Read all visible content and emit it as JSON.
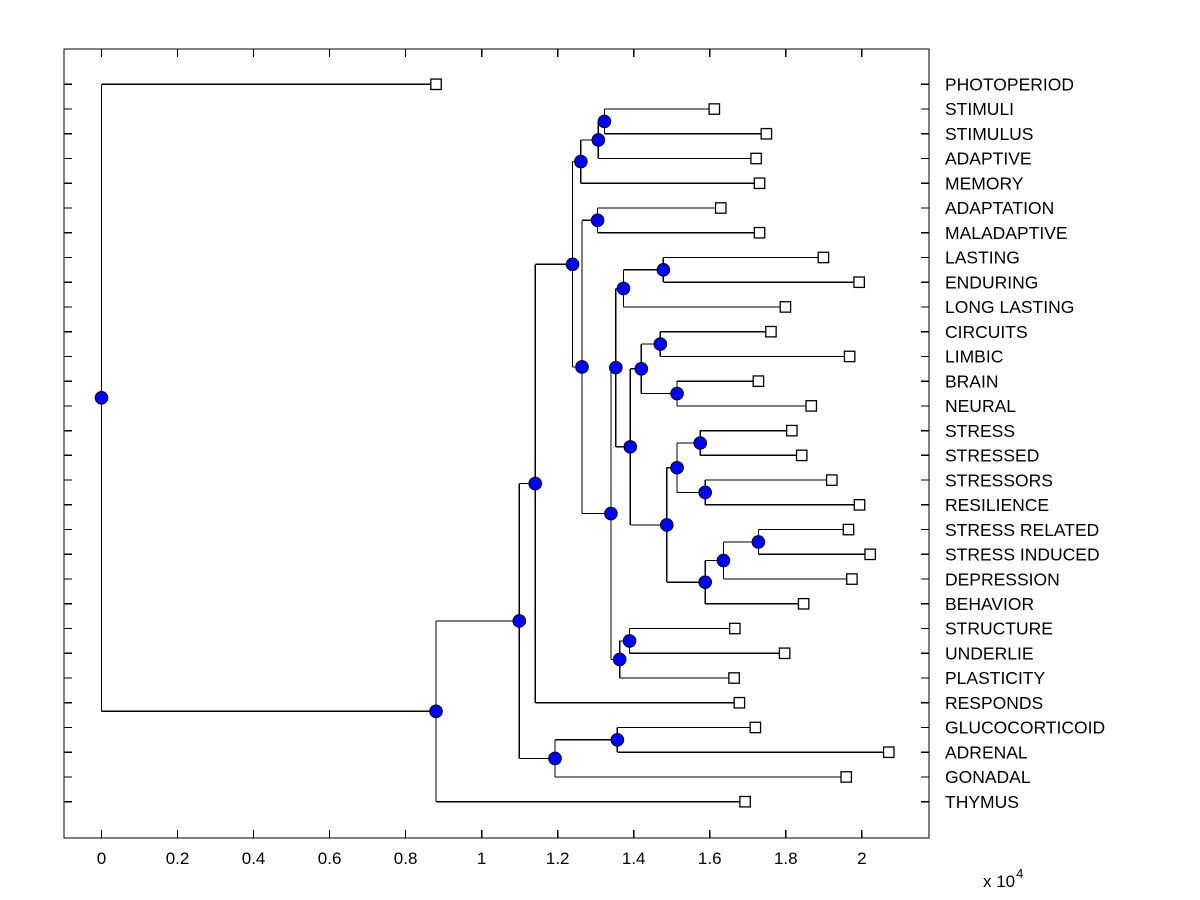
{
  "figure": {
    "background": "#ffffff",
    "description": "Hierarchical clustering dendrogram (phylogenetic-style tree) of stress-related terms"
  },
  "chart_data": {
    "type": "dendrogram",
    "orientation": "horizontal-right-labels",
    "title": "",
    "xlabel": "",
    "ylabel": "",
    "x_unit_multiplier": "1e4",
    "x_axis": {
      "tick_values": [
        0,
        0.2,
        0.4,
        0.6,
        0.8,
        1,
        1.2,
        1.4,
        1.6,
        1.8,
        2
      ],
      "tick_labels": [
        "0",
        "0.2",
        "0.4",
        "0.6",
        "0.8",
        "1",
        "1.2",
        "1.4",
        "1.6",
        "1.8",
        "2"
      ],
      "multiplier_base": "x 10",
      "multiplier_exponent": "4",
      "xlim": [
        -0.1,
        2.18
      ],
      "grid": false
    },
    "style": {
      "line_color": "#000000",
      "internal_node_fill": "#0000ff",
      "internal_node_edge": "#000000",
      "leaf_marker_fill": "#ffffff",
      "leaf_marker_edge": "#000000",
      "box": true
    },
    "leaves": [
      {
        "label": "PHOTOPERIOD",
        "x": 0.88
      },
      {
        "label": "STIMULI",
        "x": 1.612
      },
      {
        "label": "STIMULUS",
        "x": 1.749
      },
      {
        "label": "ADAPTIVE",
        "x": 1.722
      },
      {
        "label": "MEMORY",
        "x": 1.731
      },
      {
        "label": "ADAPTATION",
        "x": 1.629
      },
      {
        "label": "MALADAPTIVE",
        "x": 1.731
      },
      {
        "label": "LASTING",
        "x": 1.899
      },
      {
        "label": "ENDURING",
        "x": 1.993
      },
      {
        "label": "LONG LASTING",
        "x": 1.799
      },
      {
        "label": "CIRCUITS",
        "x": 1.761
      },
      {
        "label": "LIMBIC",
        "x": 1.968
      },
      {
        "label": "BRAIN",
        "x": 1.728
      },
      {
        "label": "NEURAL",
        "x": 1.867
      },
      {
        "label": "STRESS",
        "x": 1.816
      },
      {
        "label": "STRESSED",
        "x": 1.842
      },
      {
        "label": "STRESSORS",
        "x": 1.921
      },
      {
        "label": "RESILIENCE",
        "x": 1.994
      },
      {
        "label": "STRESS RELATED",
        "x": 1.965
      },
      {
        "label": "STRESS INDUCED",
        "x": 2.022
      },
      {
        "label": "DEPRESSION",
        "x": 1.974
      },
      {
        "label": "BEHAVIOR",
        "x": 1.847
      },
      {
        "label": "STRUCTURE",
        "x": 1.666
      },
      {
        "label": "UNDERLIE",
        "x": 1.797
      },
      {
        "label": "PLASTICITY",
        "x": 1.664
      },
      {
        "label": "RESPONDS",
        "x": 1.678
      },
      {
        "label": "GLUCOCORTICOID",
        "x": 1.72
      },
      {
        "label": "ADRENAL",
        "x": 2.071
      },
      {
        "label": "GONADAL",
        "x": 1.959
      },
      {
        "label": "THYMUS",
        "x": 1.693
      }
    ],
    "tree": {
      "x": 0.0,
      "children": [
        {
          "leaf": 0
        },
        {
          "x": 0.88,
          "children": [
            {
              "x": 1.099,
              "children": [
                {
                  "x": 1.141,
                  "children": [
                    {
                      "x": 1.239,
                      "children": [
                        {
                          "x": 1.261,
                          "children": [
                            {
                              "x": 1.307,
                              "children": [
                                {
                                  "x": 1.323,
                                  "children": [
                                    {
                                      "leaf": 1
                                    },
                                    {
                                      "leaf": 2
                                    }
                                  ]
                                },
                                {
                                  "leaf": 3
                                }
                              ]
                            },
                            {
                              "leaf": 4
                            }
                          ]
                        },
                        {
                          "x": 1.264,
                          "children": [
                            {
                              "x": 1.305,
                              "children": [
                                {
                                  "leaf": 5
                                },
                                {
                                  "leaf": 6
                                }
                              ]
                            },
                            {
                              "x": 1.34,
                              "children": [
                                {
                                  "x": 1.353,
                                  "children": [
                                    {
                                      "x": 1.373,
                                      "children": [
                                        {
                                          "x": 1.478,
                                          "children": [
                                            {
                                              "leaf": 7
                                            },
                                            {
                                              "leaf": 8
                                            }
                                          ]
                                        },
                                        {
                                          "leaf": 9
                                        }
                                      ]
                                    },
                                    {
                                      "x": 1.391,
                                      "children": [
                                        {
                                          "x": 1.42,
                                          "children": [
                                            {
                                              "x": 1.47,
                                              "children": [
                                                {
                                                  "leaf": 10
                                                },
                                                {
                                                  "leaf": 11
                                                }
                                              ]
                                            },
                                            {
                                              "x": 1.514,
                                              "children": [
                                                {
                                                  "leaf": 12
                                                },
                                                {
                                                  "leaf": 13
                                                }
                                              ]
                                            }
                                          ]
                                        },
                                        {
                                          "x": 1.487,
                                          "children": [
                                            {
                                              "x": 1.514,
                                              "children": [
                                                {
                                                  "x": 1.575,
                                                  "children": [
                                                    {
                                                      "leaf": 14
                                                    },
                                                    {
                                                      "leaf": 15
                                                    }
                                                  ]
                                                },
                                                {
                                                  "x": 1.588,
                                                  "children": [
                                                    {
                                                      "leaf": 16
                                                    },
                                                    {
                                                      "leaf": 17
                                                    }
                                                  ]
                                                }
                                              ]
                                            },
                                            {
                                              "x": 1.588,
                                              "children": [
                                                {
                                                  "x": 1.636,
                                                  "children": [
                                                    {
                                                      "x": 1.728,
                                                      "children": [
                                                        {
                                                          "leaf": 18
                                                        },
                                                        {
                                                          "leaf": 19
                                                        }
                                                      ]
                                                    },
                                                    {
                                                      "leaf": 20
                                                    }
                                                  ]
                                                },
                                                {
                                                  "leaf": 21
                                                }
                                              ]
                                            }
                                          ]
                                        }
                                      ]
                                    }
                                  ]
                                },
                                {
                                  "x": 1.363,
                                  "children": [
                                    {
                                      "x": 1.389,
                                      "children": [
                                        {
                                          "leaf": 22
                                        },
                                        {
                                          "leaf": 23
                                        }
                                      ]
                                    },
                                    {
                                      "leaf": 24
                                    }
                                  ]
                                }
                              ]
                            }
                          ]
                        }
                      ]
                    },
                    {
                      "leaf": 25
                    }
                  ]
                },
                {
                  "x": 1.193,
                  "children": [
                    {
                      "x": 1.357,
                      "children": [
                        {
                          "leaf": 26
                        },
                        {
                          "leaf": 27
                        }
                      ]
                    },
                    {
                      "leaf": 28
                    }
                  ]
                }
              ]
            },
            {
              "leaf": 29
            }
          ]
        }
      ]
    }
  }
}
